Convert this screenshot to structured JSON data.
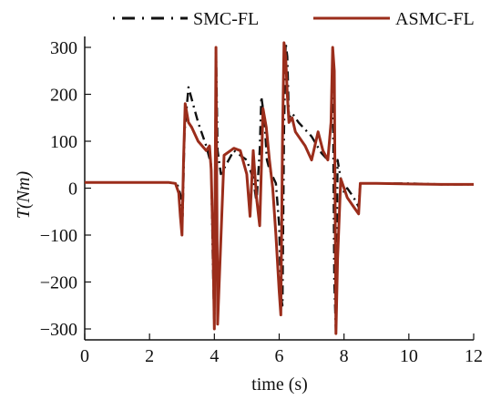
{
  "chart_data": {
    "type": "line",
    "xlabel": "time (s)",
    "ylabel": "T(Nm)",
    "xlim": [
      0,
      12
    ],
    "ylim": [
      -320,
      320
    ],
    "xticks": [
      0,
      2,
      4,
      6,
      8,
      10,
      12
    ],
    "yticks": [
      300,
      200,
      100,
      0,
      -100,
      -200,
      -300
    ],
    "xtick_labels": [
      "0",
      "2",
      "4",
      "6",
      "8",
      "10",
      "12"
    ],
    "ytick_labels": [
      "300",
      "200",
      "100",
      "0",
      "−100",
      "−200",
      "−300"
    ],
    "grid": false,
    "legend_position": "top",
    "series": [
      {
        "name": "SMC-FL",
        "style": "dash-dot",
        "color": "#111111",
        "x": [
          0,
          2.6,
          2.85,
          2.98,
          3.02,
          3.08,
          3.2,
          3.5,
          3.75,
          3.9,
          3.95,
          4.0,
          4.05,
          4.1,
          4.2,
          4.6,
          5.0,
          5.2,
          5.3,
          5.4,
          5.45,
          5.5,
          5.55,
          5.62,
          5.7,
          5.9,
          6.0,
          6.05,
          6.1,
          6.15,
          6.2,
          6.25,
          6.3,
          6.4,
          6.6,
          7.0,
          7.3,
          7.5,
          7.6,
          7.65,
          7.7,
          7.75,
          7.8,
          7.9,
          8.0,
          8.1,
          8.3,
          8.45,
          8.5,
          9.0,
          10.0,
          11.0,
          12.0
        ],
        "y": [
          12,
          12,
          10,
          -20,
          -60,
          120,
          215,
          140,
          90,
          50,
          -150,
          -300,
          300,
          80,
          30,
          80,
          60,
          20,
          -30,
          80,
          195,
          170,
          140,
          60,
          40,
          10,
          -80,
          -230,
          -250,
          120,
          310,
          280,
          150,
          160,
          140,
          110,
          75,
          60,
          140,
          300,
          -200,
          -310,
          60,
          20,
          -10,
          0,
          -20,
          -40,
          10,
          10,
          10,
          8,
          8
        ]
      },
      {
        "name": "ASMC-FL",
        "style": "solid",
        "color": "#9b2d1b",
        "x": [
          0,
          2.6,
          2.8,
          2.9,
          2.95,
          3.0,
          3.05,
          3.1,
          3.2,
          3.3,
          3.5,
          3.75,
          3.85,
          3.9,
          3.95,
          4.0,
          4.05,
          4.1,
          4.3,
          4.6,
          4.8,
          5.0,
          5.1,
          5.2,
          5.3,
          5.4,
          5.45,
          5.5,
          5.55,
          5.6,
          5.7,
          5.8,
          5.9,
          6.0,
          6.05,
          6.1,
          6.15,
          6.2,
          6.25,
          6.3,
          6.4,
          6.5,
          6.8,
          7.0,
          7.2,
          7.35,
          7.5,
          7.6,
          7.65,
          7.7,
          7.75,
          7.8,
          7.9,
          8.0,
          8.1,
          8.3,
          8.45,
          8.5,
          9.0,
          10.0,
          11.0,
          12.0
        ],
        "y": [
          12,
          12,
          10,
          -10,
          -60,
          -100,
          60,
          180,
          140,
          130,
          100,
          80,
          90,
          40,
          -100,
          -300,
          300,
          -290,
          70,
          85,
          80,
          30,
          -60,
          80,
          -20,
          -80,
          40,
          170,
          150,
          130,
          60,
          0,
          -100,
          -220,
          -270,
          100,
          310,
          280,
          200,
          140,
          150,
          120,
          90,
          60,
          120,
          80,
          60,
          140,
          300,
          250,
          -310,
          -150,
          20,
          0,
          -20,
          -40,
          -55,
          10,
          10,
          9,
          8,
          8
        ]
      }
    ]
  }
}
